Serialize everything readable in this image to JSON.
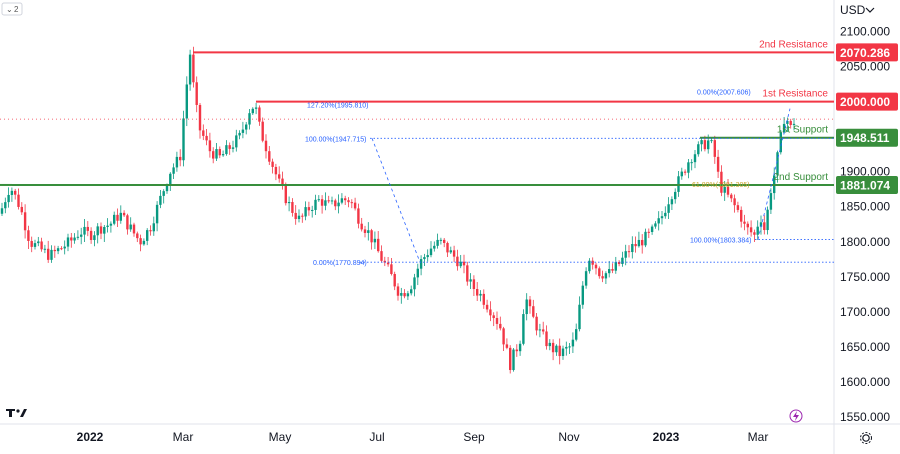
{
  "toolbar": {
    "collapse_label": "2",
    "currency": "USD",
    "tv_logo": "tradingview-logo",
    "settings_icon": "gear-icon",
    "lightning_icon": "lightning-icon"
  },
  "colors": {
    "up": "#089981",
    "down": "#f23645",
    "resistance": "#f23645",
    "support": "#388e3c",
    "fib": "#2962ff",
    "fib_gold": "#c9a227",
    "axis": "#131722"
  },
  "chart_data": {
    "type": "candlestick",
    "y_unit": "USD",
    "ylim": [
      1540,
      2145
    ],
    "y_ticks": [
      "2100.000",
      "2050.000",
      "2000.000",
      "1950.000",
      "1900.000",
      "1850.000",
      "1800.000",
      "1750.000",
      "1700.000",
      "1650.000",
      "1600.000",
      "1550.000"
    ],
    "x_ticks": [
      "2022",
      "Mar",
      "May",
      "Jul",
      "Sep",
      "Nov",
      "2023",
      "Mar"
    ],
    "levels": [
      {
        "name": "2nd Resistance",
        "price": 2070.286,
        "price_label": "2070.286",
        "kind": "resistance"
      },
      {
        "name": "1st Resistance",
        "price": 2000.0,
        "price_label": "2000.000",
        "kind": "resistance"
      },
      {
        "name": "1st Support",
        "price": 1948.511,
        "price_label": "1948.511",
        "kind": "support"
      },
      {
        "name": "2nd Support",
        "price": 1881.074,
        "price_label": "1881.074",
        "kind": "support"
      }
    ],
    "annotations": [
      {
        "text": "127.20%(1995.810)",
        "price": 1995.81,
        "color": "fib"
      },
      {
        "text": "100.00%(1947.715)",
        "price": 1947.715,
        "color": "fib"
      },
      {
        "text": "0.00%(1770.894)",
        "price": 1770.894,
        "color": "fib"
      },
      {
        "text": "0.00%(2007.606)",
        "price": 2007.606,
        "color": "fib"
      },
      {
        "text": "61.80%(1881.305)",
        "price": 1881.305,
        "color": "fib_gold"
      },
      {
        "text": "100.00%(1803.384)",
        "price": 1803.384,
        "color": "fib"
      }
    ],
    "current_price": 1975,
    "price_path": [
      [
        0,
        1840
      ],
      [
        10,
        1880
      ],
      [
        20,
        1850
      ],
      [
        30,
        1800
      ],
      [
        40,
        1790
      ],
      [
        50,
        1780
      ],
      [
        60,
        1790
      ],
      [
        70,
        1800
      ],
      [
        80,
        1815
      ],
      [
        90,
        1810
      ],
      [
        100,
        1820
      ],
      [
        110,
        1825
      ],
      [
        120,
        1840
      ],
      [
        130,
        1820
      ],
      [
        140,
        1800
      ],
      [
        150,
        1820
      ],
      [
        160,
        1860
      ],
      [
        170,
        1900
      ],
      [
        180,
        1920
      ],
      [
        185,
        2000
      ],
      [
        190,
        2070
      ],
      [
        195,
        2000
      ],
      [
        200,
        1960
      ],
      [
        210,
        1930
      ],
      [
        220,
        1920
      ],
      [
        230,
        1935
      ],
      [
        240,
        1950
      ],
      [
        250,
        1990
      ],
      [
        255,
        1995
      ],
      [
        260,
        1960
      ],
      [
        270,
        1920
      ],
      [
        280,
        1880
      ],
      [
        290,
        1850
      ],
      [
        300,
        1830
      ],
      [
        310,
        1850
      ],
      [
        320,
        1860
      ],
      [
        330,
        1850
      ],
      [
        340,
        1860
      ],
      [
        350,
        1860
      ],
      [
        360,
        1830
      ],
      [
        370,
        1810
      ],
      [
        380,
        1780
      ],
      [
        390,
        1755
      ],
      [
        400,
        1725
      ],
      [
        410,
        1735
      ],
      [
        420,
        1770
      ],
      [
        430,
        1790
      ],
      [
        440,
        1800
      ],
      [
        450,
        1785
      ],
      [
        460,
        1770
      ],
      [
        470,
        1740
      ],
      [
        480,
        1725
      ],
      [
        490,
        1705
      ],
      [
        500,
        1680
      ],
      [
        510,
        1625
      ],
      [
        520,
        1660
      ],
      [
        525,
        1725
      ],
      [
        530,
        1700
      ],
      [
        540,
        1670
      ],
      [
        550,
        1650
      ],
      [
        560,
        1640
      ],
      [
        570,
        1650
      ],
      [
        575,
        1660
      ],
      [
        580,
        1710
      ],
      [
        585,
        1760
      ],
      [
        590,
        1780
      ],
      [
        600,
        1755
      ],
      [
        610,
        1755
      ],
      [
        620,
        1770
      ],
      [
        630,
        1790
      ],
      [
        640,
        1800
      ],
      [
        650,
        1810
      ],
      [
        660,
        1830
      ],
      [
        670,
        1865
      ],
      [
        680,
        1890
      ],
      [
        690,
        1920
      ],
      [
        700,
        1935
      ],
      [
        710,
        1945
      ],
      [
        715,
        1920
      ],
      [
        720,
        1880
      ],
      [
        730,
        1860
      ],
      [
        740,
        1840
      ],
      [
        745,
        1820
      ],
      [
        750,
        1815
      ],
      [
        755,
        1808
      ],
      [
        760,
        1840
      ],
      [
        765,
        1815
      ],
      [
        770,
        1870
      ],
      [
        775,
        1900
      ],
      [
        780,
        1940
      ],
      [
        785,
        1985
      ],
      [
        790,
        1960
      ],
      [
        795,
        1975
      ]
    ]
  }
}
